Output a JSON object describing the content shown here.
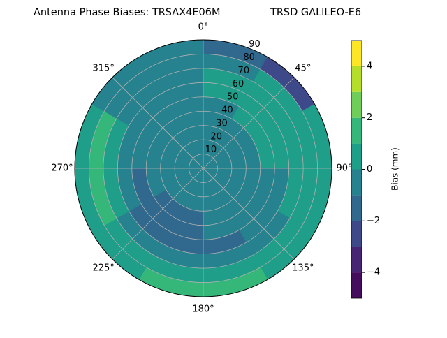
{
  "chart_data": {
    "type": "polar_contour",
    "title": "Antenna Phase Biases: TRSAX4E06M",
    "title_right": "TRSD GALILEO-E6",
    "colorbar_label": "Bias (mm)",
    "rlim": [
      0,
      90
    ],
    "rticks": [
      10,
      20,
      30,
      40,
      50,
      60,
      70,
      80,
      90
    ],
    "thetaticks": [
      {
        "value": 0,
        "label": "0°"
      },
      {
        "value": 45,
        "label": "45°"
      },
      {
        "value": 90,
        "label": "90°"
      },
      {
        "value": 135,
        "label": "135°"
      },
      {
        "value": 180,
        "label": "180°"
      },
      {
        "value": 225,
        "label": "225°"
      },
      {
        "value": 270,
        "label": "270°"
      },
      {
        "value": 315,
        "label": "315°"
      }
    ],
    "levels": [
      -5,
      -4,
      -3,
      -2,
      -1,
      0,
      1,
      2,
      3,
      4,
      5
    ],
    "colors": [
      "#450d5e",
      "#482475",
      "#3e4989",
      "#31688e",
      "#26828e",
      "#1f9e89",
      "#35b779",
      "#6ece58",
      "#b5de2b",
      "#fde725"
    ],
    "clim": [
      -5,
      5
    ],
    "cticks": [
      {
        "value": -4,
        "label": "−4"
      },
      {
        "value": -2,
        "label": "−2"
      },
      0,
      2,
      4
    ],
    "values": [
      [
        -0.5,
        -0.5,
        -0.5,
        -0.5,
        -0.5,
        -0.5,
        -0.5,
        -0.5,
        -0.5,
        -0.5,
        -0.5,
        -0.5
      ],
      [
        -0.5,
        -0.5,
        -0.5,
        -0.5,
        -0.5,
        -0.5,
        -0.5,
        -0.5,
        -0.5,
        -0.5,
        -0.5,
        -0.5
      ],
      [
        -0.5,
        -0.5,
        -0.5,
        -0.5,
        -0.5,
        -0.5,
        -0.5,
        -0.5,
        -0.5,
        -0.5,
        -0.5,
        -0.5
      ],
      [
        -0.5,
        -0.5,
        -0.5,
        -0.5,
        -0.5,
        -0.5,
        -1.5,
        -1.5,
        -0.5,
        -0.5,
        -0.5,
        -0.5
      ],
      [
        -0.5,
        0.5,
        0.5,
        -0.5,
        -0.5,
        -0.5,
        -1.5,
        -1.5,
        -1.5,
        -0.5,
        -0.5,
        -0.5
      ],
      [
        0.5,
        0.5,
        0.5,
        -0.5,
        -0.5,
        -1.5,
        -1.5,
        -1.5,
        -0.5,
        -0.5,
        -0.5,
        -0.5
      ],
      [
        0.5,
        0.5,
        0.5,
        0.5,
        -0.5,
        -0.5,
        -0.5,
        -0.5,
        0.5,
        0.5,
        -0.5,
        -0.5
      ],
      [
        -0.5,
        0.5,
        0.5,
        0.5,
        0.5,
        0.5,
        0.5,
        0.5,
        1.5,
        1.5,
        -0.5,
        -0.5
      ],
      [
        -1.5,
        -2.5,
        0.5,
        0.5,
        0.5,
        1.5,
        1.5,
        0.5,
        0.5,
        0.5,
        -0.5,
        -0.5
      ]
    ]
  }
}
